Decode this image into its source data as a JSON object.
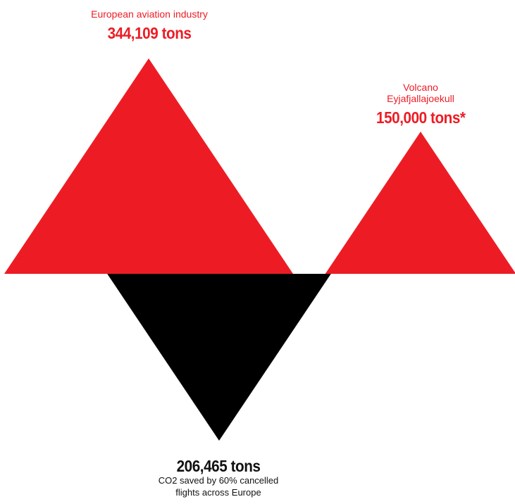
{
  "chart_data": {
    "type": "triangle",
    "values": [
      344109,
      150000,
      206465
    ],
    "items": [
      {
        "label": "European aviation industry",
        "value_label": "344,109 tons",
        "color": "#ED1C24",
        "direction": "up"
      },
      {
        "label_lines": [
          "Volcano",
          "Eyjafjallajoekull"
        ],
        "value_label": "150,000 tons*",
        "color": "#ED1C24",
        "direction": "up"
      },
      {
        "value_label": "206,465 tons",
        "caption_lines": [
          "CO2 saved by 60% cancelled",
          "flights across Europe"
        ],
        "color": "#000000",
        "direction": "down"
      }
    ]
  }
}
